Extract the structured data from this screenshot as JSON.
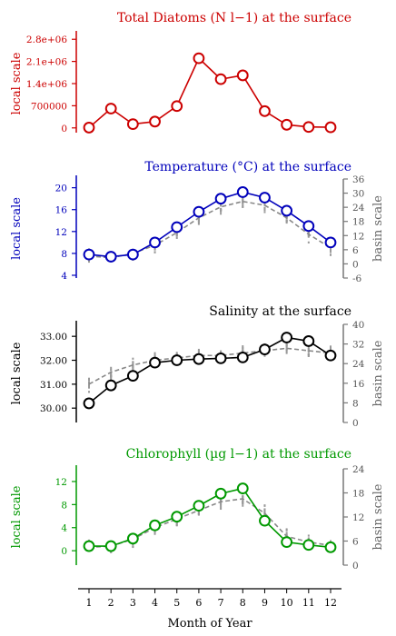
{
  "chart_data": [
    {
      "type": "line",
      "title": "Total Diatoms (N l−1) at the surface",
      "color": "#cc0000",
      "left_axis": {
        "label": "local scale",
        "ticks": [
          0,
          700000,
          1400000,
          2100000,
          2800000
        ],
        "tick_labels": [
          "0",
          "700000",
          "1.4e+06",
          "2.1e+06",
          "2.8e+06"
        ],
        "range": [
          -150000,
          2950000
        ]
      },
      "series": [
        {
          "x": [
            1,
            2,
            3,
            4,
            5,
            6,
            7,
            8,
            9,
            10,
            11,
            12
          ],
          "values": [
            10000,
            610000,
            120000,
            200000,
            690000,
            2200000,
            1540000,
            1660000,
            530000,
            100000,
            30000,
            20000
          ]
        }
      ]
    },
    {
      "type": "line",
      "title": "Temperature (°C) at the surface",
      "color": "#0000bb",
      "left_axis": {
        "label": "local scale",
        "ticks": [
          4,
          8,
          12,
          16,
          20
        ],
        "tick_labels": [
          "4",
          "8",
          "12",
          "16",
          "20"
        ],
        "range": [
          3.5,
          21.6
        ]
      },
      "right_axis": {
        "label": "basin scale",
        "ticks": [
          -6,
          0,
          6,
          12,
          18,
          24,
          30,
          36
        ],
        "tick_labels": [
          "-6",
          "0",
          "6",
          "12",
          "18",
          "24",
          "30",
          "36"
        ],
        "range": [
          -6,
          36
        ]
      },
      "series": [
        {
          "x": [
            1,
            2,
            3,
            4,
            5,
            6,
            7,
            8,
            9,
            10,
            11,
            12
          ],
          "values": [
            7.8,
            7.4,
            7.8,
            10.0,
            12.8,
            15.6,
            18.0,
            19.2,
            18.2,
            15.8,
            13.0,
            10.0
          ]
        }
      ],
      "basin_mean": [
        7.5,
        7.2,
        8.0,
        9.5,
        11.8,
        14.5,
        16.5,
        17.5,
        16.8,
        14.5,
        11.5,
        9.0
      ]
    },
    {
      "type": "line",
      "title": "Salinity at the surface",
      "color": "#000000",
      "left_axis": {
        "label": "local scale",
        "ticks": [
          30.0,
          31.0,
          32.0,
          33.0
        ],
        "tick_labels": [
          "30.00",
          "31.00",
          "32.00",
          "33.00"
        ],
        "range": [
          29.4,
          33.5
        ]
      },
      "right_axis": {
        "label": "basin scale",
        "ticks": [
          0,
          8,
          16,
          24,
          32,
          40
        ],
        "tick_labels": [
          "0",
          "8",
          "16",
          "24",
          "32",
          "40"
        ],
        "range": [
          0,
          40
        ]
      },
      "series": [
        {
          "x": [
            1,
            2,
            3,
            4,
            5,
            6,
            7,
            8,
            9,
            10,
            11,
            12
          ],
          "values": [
            30.2,
            30.95,
            31.35,
            31.9,
            32.0,
            32.05,
            32.08,
            32.12,
            32.45,
            32.95,
            32.8,
            32.2
          ]
        }
      ],
      "basin_mean": [
        31.0,
        31.5,
        31.8,
        32.0,
        32.1,
        32.2,
        32.2,
        32.3,
        32.4,
        32.5,
        32.4,
        32.3
      ]
    },
    {
      "type": "line",
      "title": "Chlorophyll (µg l−1) at the surface",
      "color": "#009900",
      "left_axis": {
        "label": "local scale",
        "ticks": [
          0,
          4,
          8,
          12
        ],
        "tick_labels": [
          "0",
          "4",
          "8",
          "12"
        ],
        "range": [
          -2.5,
          14.2
        ]
      },
      "right_axis": {
        "label": "basin scale",
        "ticks": [
          0,
          6,
          12,
          18,
          24
        ],
        "tick_labels": [
          "0",
          "6",
          "12",
          "18",
          "24"
        ],
        "range": [
          0,
          24
        ]
      },
      "series": [
        {
          "x": [
            1,
            2,
            3,
            4,
            5,
            6,
            7,
            8,
            9,
            10,
            11,
            12
          ],
          "values": [
            0.8,
            0.8,
            2.1,
            4.4,
            5.9,
            7.8,
            9.9,
            10.8,
            5.2,
            1.5,
            1.0,
            0.6
          ]
        }
      ],
      "basin_mean": [
        0.6,
        0.8,
        2.0,
        4.0,
        5.5,
        7.0,
        8.5,
        9.0,
        6.5,
        2.5,
        1.5,
        0.9
      ]
    }
  ],
  "x_axis": {
    "label": "Month of Year",
    "ticks": [
      1,
      2,
      3,
      4,
      5,
      6,
      7,
      8,
      9,
      10,
      11,
      12
    ],
    "tick_labels": [
      "1",
      "2",
      "3",
      "4",
      "5",
      "6",
      "7",
      "8",
      "9",
      "10",
      "11",
      "12"
    ],
    "range": [
      0.4,
      12.6
    ]
  }
}
